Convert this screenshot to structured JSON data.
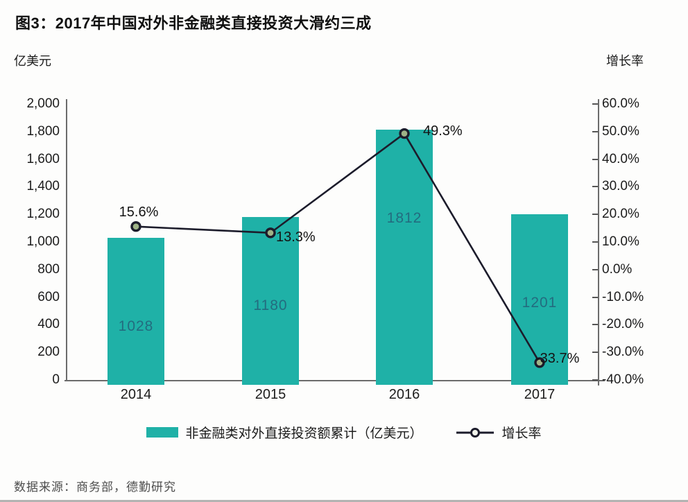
{
  "title": "图3：2017年中国对外非金融类直接投资大滑约三成",
  "source": "数据来源：商务部，德勤研究",
  "legend": {
    "bar_label": "非金融类对外直接投资额累计（亿美元）",
    "line_label": "增长率"
  },
  "colors": {
    "bar": "#1fb1a7",
    "bar_value_text": "rgba(38,66,104,0.62)",
    "line": "#1c1c2b",
    "marker_fill": "#9fb387",
    "title_text": "#101010",
    "source_text": "#4d4d4d"
  },
  "chart_data": {
    "type": "bar",
    "subtype": "combo-bar-line-dual-axis",
    "title": "图3：2017年中国对外非金融类直接投资大滑约三成",
    "categories": [
      "2014",
      "2015",
      "2016",
      "2017"
    ],
    "series": [
      {
        "name": "非金融类对外直接投资额累计（亿美元）",
        "type": "bar",
        "axis": "left",
        "values": [
          1028,
          1180,
          1812,
          1201
        ],
        "value_labels": [
          "1028",
          "1180",
          "1812",
          "1201"
        ]
      },
      {
        "name": "增长率",
        "type": "line",
        "axis": "right",
        "values": [
          15.6,
          13.3,
          49.3,
          -33.7
        ],
        "value_labels": [
          "15.6%",
          "13.3%",
          "49.3%",
          "-33.7%"
        ]
      }
    ],
    "left_axis": {
      "label": "亿美元",
      "min": 0,
      "max": 2000,
      "step": 200,
      "tick_labels": [
        "2,000",
        "1,800",
        "1,600",
        "1,400",
        "1,200",
        "1,000",
        "800",
        "600",
        "400",
        "200",
        "0"
      ]
    },
    "right_axis": {
      "label": "增长率",
      "min": -40,
      "max": 60,
      "step": 10,
      "tick_labels": [
        "60.0%",
        "50.0%",
        "40.0%",
        "30.0%",
        "20.0%",
        "10.0%",
        "0.0%",
        "-10.0%",
        "-20.0%",
        "-30.0%",
        "-40.0%"
      ]
    },
    "grid": false,
    "legend_position": "bottom"
  }
}
